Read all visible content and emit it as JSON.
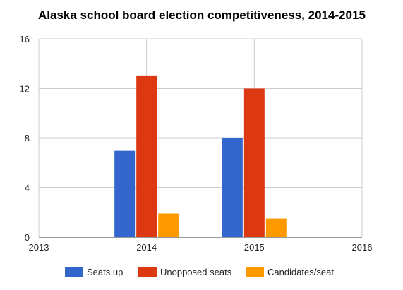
{
  "chart_data": {
    "type": "bar",
    "title": "Alaska school board election competitiveness, 2014-2015",
    "xlabel": "",
    "ylabel": "",
    "x_ticks": [
      "2013",
      "2014",
      "2015",
      "2016"
    ],
    "x_range": [
      2013,
      2016
    ],
    "categories": [
      "2014",
      "2015"
    ],
    "y_ticks": [
      "0",
      "4",
      "8",
      "12",
      "16"
    ],
    "ylim": [
      0,
      16
    ],
    "grid": true,
    "legend_position": "bottom",
    "series": [
      {
        "name": "Seats up",
        "color": "#3366cc",
        "values": [
          7,
          8
        ]
      },
      {
        "name": "Unopposed seats",
        "color": "#dc3912",
        "values": [
          13,
          12
        ]
      },
      {
        "name": "Candidates/seat",
        "color": "#ff9900",
        "values": [
          1.9,
          1.5
        ]
      }
    ]
  }
}
